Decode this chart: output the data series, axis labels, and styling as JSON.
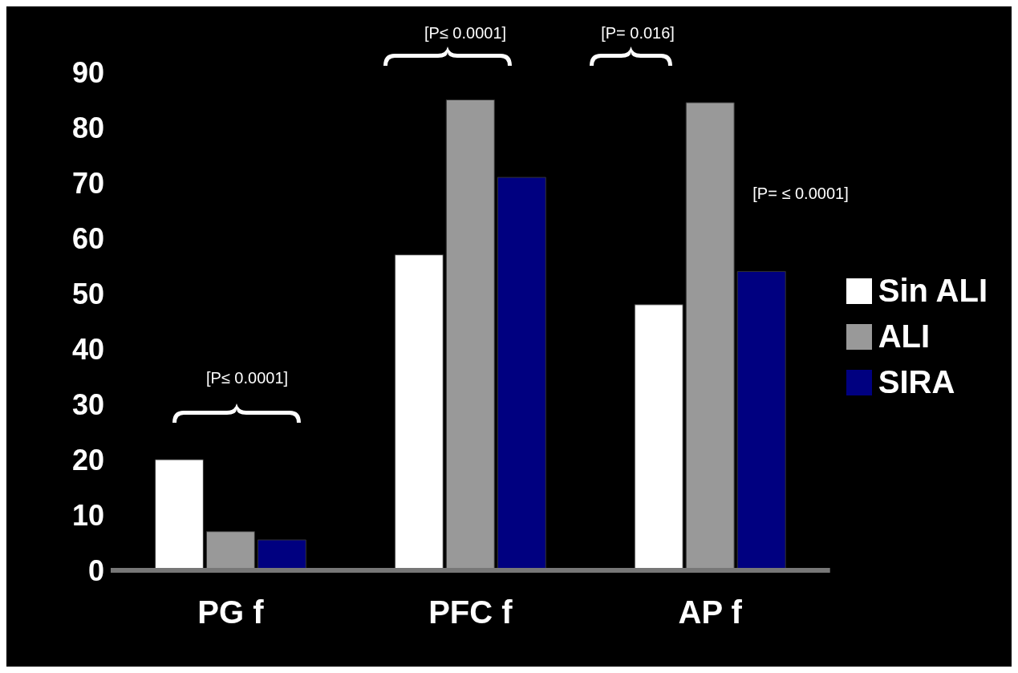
{
  "chart_data": {
    "type": "bar",
    "categories": [
      "PG  f",
      "PFC f",
      "AP f"
    ],
    "series": [
      {
        "name": "Sin ALI",
        "color": "#ffffff",
        "values": [
          20,
          57,
          48
        ]
      },
      {
        "name": "ALI",
        "color": "#999999",
        "values": [
          7,
          85,
          84.5
        ]
      },
      {
        "name": "SIRA",
        "color": "#000080",
        "values": [
          5.5,
          71,
          54
        ]
      }
    ],
    "ylim": [
      0,
      90
    ],
    "yticks": [
      0,
      10,
      20,
      30,
      40,
      50,
      60,
      70,
      80,
      90
    ],
    "grid": false,
    "legend": "right",
    "annotations": [
      "[P≤ 0.0001]",
      "[P≤ 0.0001]",
      "[P= 0.016]",
      "[P= ≤ 0.0001]"
    ]
  }
}
